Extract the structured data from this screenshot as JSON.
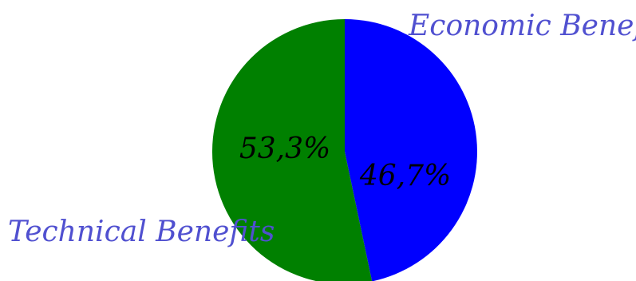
{
  "chart_data": {
    "type": "pie",
    "title": "",
    "label_color": "#5050d0",
    "slices": [
      {
        "label": "Economic Benefits",
        "value": 46.7,
        "value_label": "46,7%",
        "color": "#0000ff"
      },
      {
        "label": "Technical Benefits",
        "value": 53.3,
        "value_label": "53,3%",
        "color": "#008000"
      }
    ]
  }
}
